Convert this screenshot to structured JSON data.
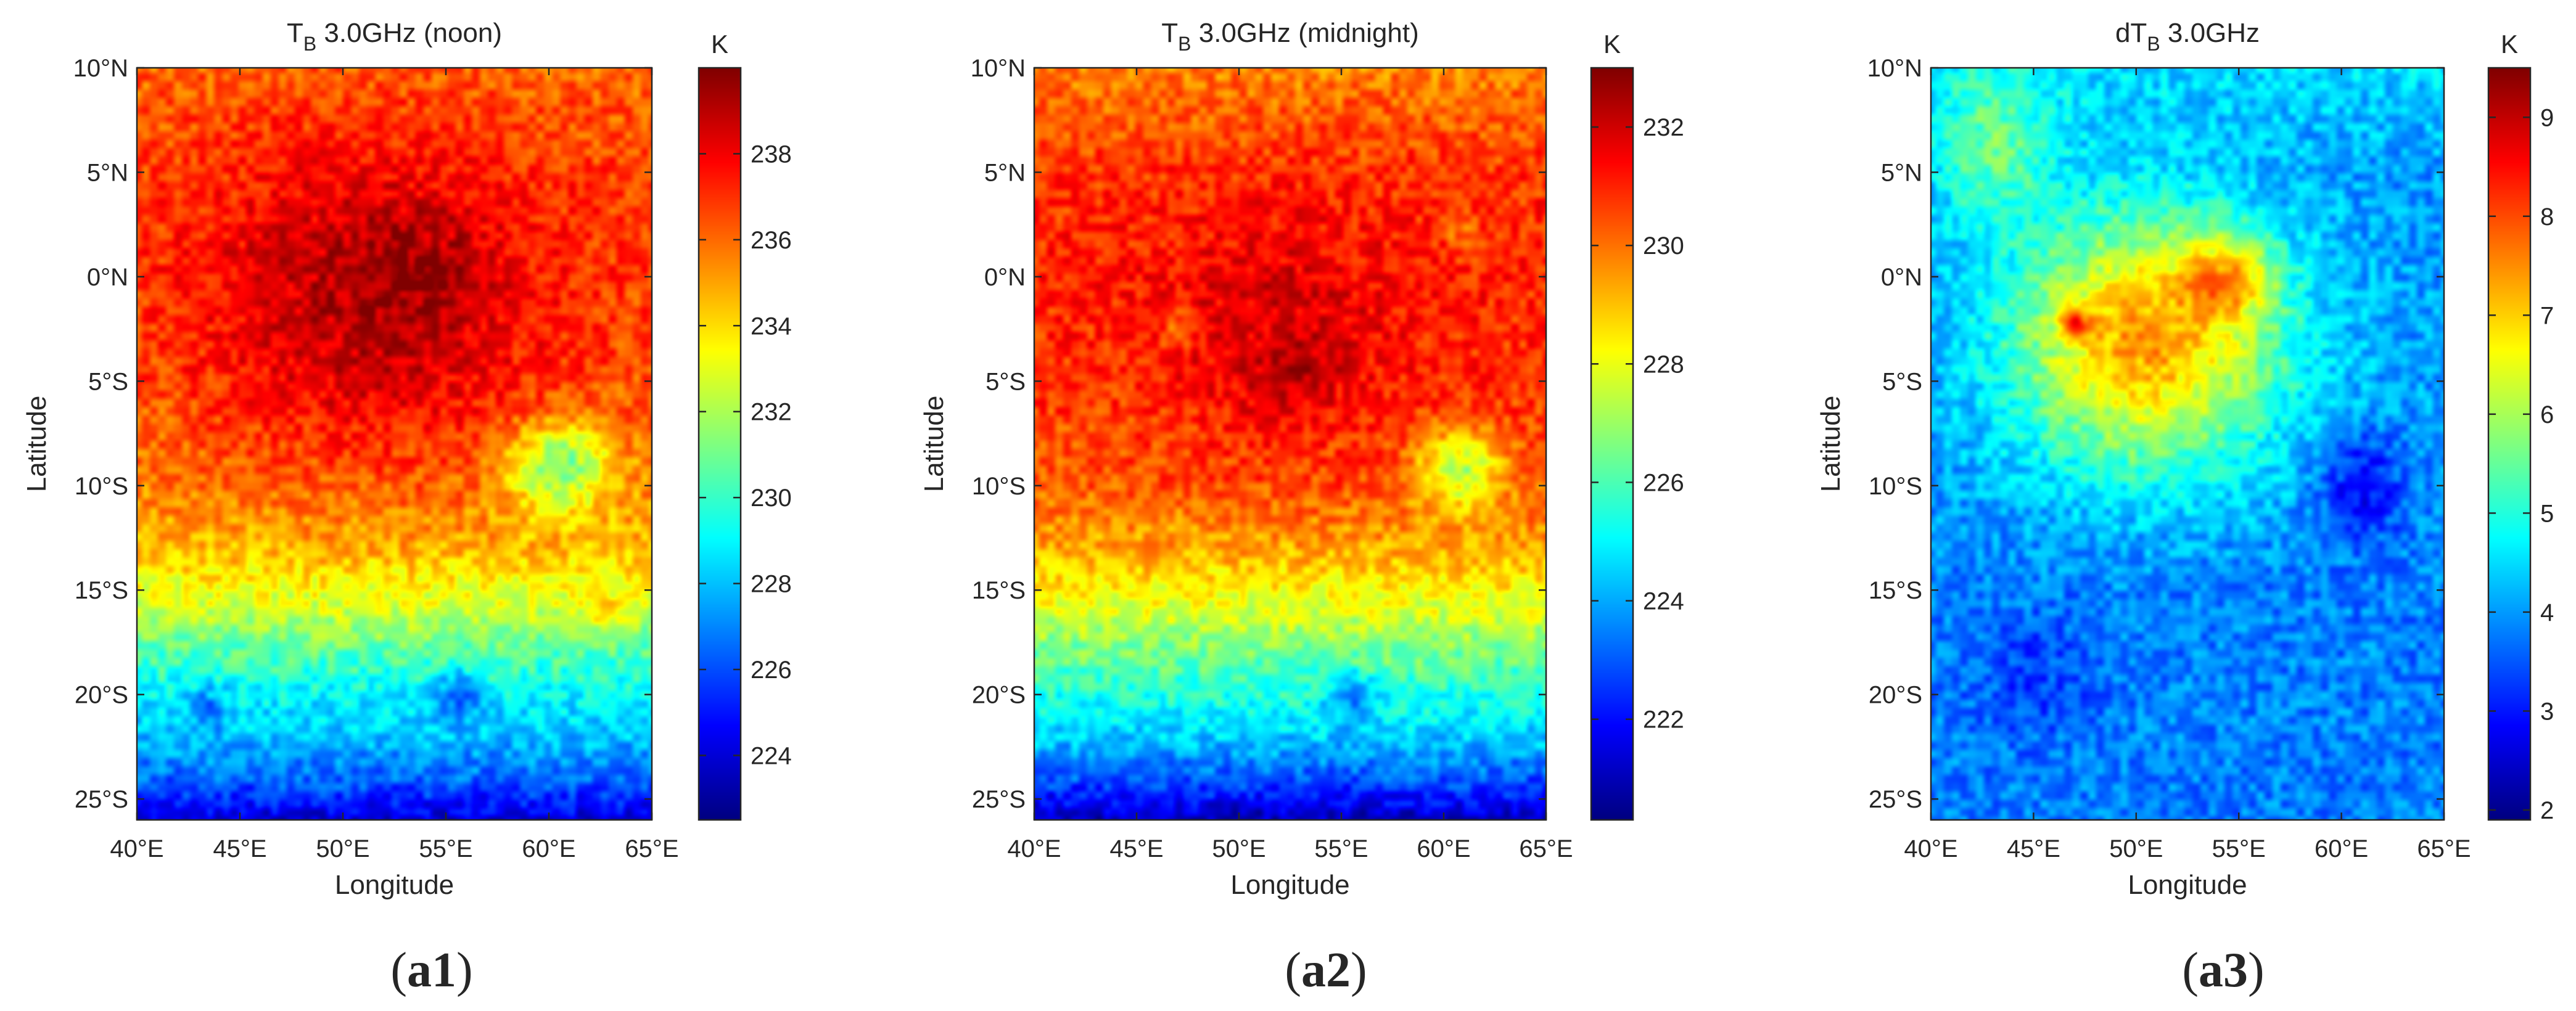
{
  "colors": {
    "axis": "#262626",
    "jet": [
      "#00008f",
      "#0000ff",
      "#00ffff",
      "#ffff00",
      "#ff0000",
      "#800000"
    ]
  },
  "chart_data": [
    {
      "type": "heatmap",
      "panel_label": "a1",
      "title_main": "T",
      "title_sub": "B",
      "title_rest": " 3.0GHz (noon)",
      "xlabel": "Longitude",
      "ylabel": "Latitude",
      "xlim": [
        40,
        65
      ],
      "ylim": [
        -26,
        10
      ],
      "xticks": [
        40,
        45,
        50,
        55,
        60,
        65
      ],
      "xtick_labels": [
        "40°E",
        "45°E",
        "50°E",
        "55°E",
        "60°E",
        "65°E"
      ],
      "yticks": [
        10,
        5,
        0,
        -5,
        -10,
        -15,
        -20,
        -25
      ],
      "ytick_labels": [
        "10°N",
        "5°N",
        "0°N",
        "5°S",
        "10°S",
        "15°S",
        "20°S",
        "25°S"
      ],
      "colorbar": {
        "unit": "K",
        "range": [
          222.5,
          240
        ],
        "ticks": [
          224,
          226,
          228,
          230,
          232,
          234,
          236,
          238
        ],
        "tick_labels": [
          "224",
          "226",
          "228",
          "230",
          "232",
          "234",
          "236",
          "238"
        ]
      },
      "field": {
        "description_values": "approximate brightness temperature field (K)",
        "background": [
          {
            "lat": 10,
            "value": 236.0
          },
          {
            "lat": 5,
            "value": 236.5
          },
          {
            "lat": 0,
            "value": 236.5
          },
          {
            "lat": -5,
            "value": 236.2
          },
          {
            "lat": -10,
            "value": 235.5
          },
          {
            "lat": -13,
            "value": 234.5
          },
          {
            "lat": -16,
            "value": 232.5
          },
          {
            "lat": -18,
            "value": 230.5
          },
          {
            "lat": -20,
            "value": 229.0
          },
          {
            "lat": -22,
            "value": 228.0
          },
          {
            "lat": -24,
            "value": 226.5
          },
          {
            "lat": -26,
            "value": 224.0
          }
        ],
        "features": [
          {
            "lon": 51.5,
            "lat": -1.5,
            "rx": 9.0,
            "ry": 8.0,
            "amp": 2.6
          },
          {
            "lon": 53.5,
            "lat": 0.5,
            "rx": 3.0,
            "ry": 2.5,
            "amp": 0.8
          },
          {
            "lon": 60.5,
            "lat": -9.0,
            "rx": 2.6,
            "ry": 2.2,
            "amp": -6.0
          },
          {
            "lon": 60.5,
            "lat": -9.0,
            "rx": 3.2,
            "ry": 2.8,
            "amp": 1.2
          },
          {
            "lon": 55.5,
            "lat": -20.0,
            "rx": 1.2,
            "ry": 1.2,
            "amp": -2.5
          },
          {
            "lon": 43.5,
            "lat": -20.5,
            "rx": 1.0,
            "ry": 1.0,
            "amp": -1.8
          },
          {
            "lon": 62.5,
            "lat": -16.0,
            "rx": 1.0,
            "ry": 1.0,
            "amp": 1.5
          }
        ]
      }
    },
    {
      "type": "heatmap",
      "panel_label": "a2",
      "title_main": "T",
      "title_sub": "B",
      "title_rest": " 3.0GHz (midnight)",
      "xlabel": "Longitude",
      "ylabel": "Latitude",
      "xlim": [
        40,
        65
      ],
      "ylim": [
        -26,
        10
      ],
      "xticks": [
        40,
        45,
        50,
        55,
        60,
        65
      ],
      "xtick_labels": [
        "40°E",
        "45°E",
        "50°E",
        "55°E",
        "60°E",
        "65°E"
      ],
      "yticks": [
        10,
        5,
        0,
        -5,
        -10,
        -15,
        -20,
        -25
      ],
      "ytick_labels": [
        "10°N",
        "5°N",
        "0°N",
        "5°S",
        "10°S",
        "15°S",
        "20°S",
        "25°S"
      ],
      "colorbar": {
        "unit": "K",
        "range": [
          220.3,
          233
        ],
        "ticks": [
          222,
          224,
          226,
          228,
          230,
          232
        ],
        "tick_labels": [
          "222",
          "224",
          "226",
          "228",
          "230",
          "232"
        ]
      },
      "field": {
        "description_values": "approximate brightness temperature field (K)",
        "background": [
          {
            "lat": 10,
            "value": 229.8
          },
          {
            "lat": 5,
            "value": 230.8
          },
          {
            "lat": 0,
            "value": 231.0
          },
          {
            "lat": -5,
            "value": 230.8
          },
          {
            "lat": -10,
            "value": 230.3
          },
          {
            "lat": -13,
            "value": 229.3
          },
          {
            "lat": -16,
            "value": 227.8
          },
          {
            "lat": -18,
            "value": 226.5
          },
          {
            "lat": -20,
            "value": 225.5
          },
          {
            "lat": -22,
            "value": 224.5
          },
          {
            "lat": -24,
            "value": 223.0
          },
          {
            "lat": -26,
            "value": 221.0
          }
        ],
        "features": [
          {
            "lon": 52.0,
            "lat": -3.0,
            "rx": 6.0,
            "ry": 6.0,
            "amp": 0.9
          },
          {
            "lon": 53.0,
            "lat": -4.5,
            "rx": 2.0,
            "ry": 2.0,
            "amp": 0.6
          },
          {
            "lon": 60.8,
            "lat": -9.2,
            "rx": 2.3,
            "ry": 2.0,
            "amp": -4.0
          },
          {
            "lon": 60.8,
            "lat": -9.2,
            "rx": 3.0,
            "ry": 2.7,
            "amp": 0.9
          },
          {
            "lon": 55.5,
            "lat": -20.0,
            "rx": 1.2,
            "ry": 1.2,
            "amp": -2.0
          },
          {
            "lon": 47.0,
            "lat": -2.5,
            "rx": 0.9,
            "ry": 0.9,
            "amp": -1.2
          },
          {
            "lon": 61.0,
            "lat": 2.0,
            "rx": 0.9,
            "ry": 0.9,
            "amp": -1.0
          }
        ]
      }
    },
    {
      "type": "heatmap",
      "panel_label": "a3",
      "title_main": "dT",
      "title_sub": "B",
      "title_rest": " 3.0GHz",
      "xlabel": "Longitude",
      "ylabel": "Latitude",
      "xlim": [
        40,
        65
      ],
      "ylim": [
        -26,
        10
      ],
      "xticks": [
        40,
        45,
        50,
        55,
        60,
        65
      ],
      "xtick_labels": [
        "40°E",
        "45°E",
        "50°E",
        "55°E",
        "60°E",
        "65°E"
      ],
      "yticks": [
        10,
        5,
        0,
        -5,
        -10,
        -15,
        -20,
        -25
      ],
      "ytick_labels": [
        "10°N",
        "5°N",
        "0°N",
        "5°S",
        "10°S",
        "15°S",
        "20°S",
        "25°S"
      ],
      "colorbar": {
        "unit": "K",
        "range": [
          1.9,
          9.5
        ],
        "ticks": [
          2,
          3,
          4,
          5,
          6,
          7,
          8,
          9
        ],
        "tick_labels": [
          "2",
          "3",
          "4",
          "5",
          "6",
          "7",
          "8",
          "9"
        ]
      },
      "field": {
        "description_values": "approximate noon-minus-midnight temperature difference (K)",
        "background": [
          {
            "lat": 10,
            "value": 4.5
          },
          {
            "lat": 5,
            "value": 4.0
          },
          {
            "lat": 0,
            "value": 4.0
          },
          {
            "lat": -5,
            "value": 4.0
          },
          {
            "lat": -10,
            "value": 4.0
          },
          {
            "lat": -15,
            "value": 3.8
          },
          {
            "lat": -20,
            "value": 3.8
          },
          {
            "lat": -26,
            "value": 3.8
          }
        ],
        "features": [
          {
            "lon": 50.5,
            "lat": -3.0,
            "rx": 6.5,
            "ry": 6.0,
            "amp": 3.4
          },
          {
            "lon": 54.5,
            "lat": 0.0,
            "rx": 2.2,
            "ry": 2.0,
            "amp": 1.8
          },
          {
            "lon": 47.0,
            "lat": -2.3,
            "rx": 0.7,
            "ry": 0.7,
            "amp": 2.2
          },
          {
            "lon": 43.0,
            "lat": 6.0,
            "rx": 3.0,
            "ry": 3.5,
            "amp": 1.4
          },
          {
            "lon": 61.0,
            "lat": -10.0,
            "rx": 2.0,
            "ry": 2.5,
            "amp": -1.2
          },
          {
            "lon": 45.0,
            "lat": -19.0,
            "rx": 3.0,
            "ry": 3.0,
            "amp": -0.5
          }
        ]
      }
    }
  ]
}
